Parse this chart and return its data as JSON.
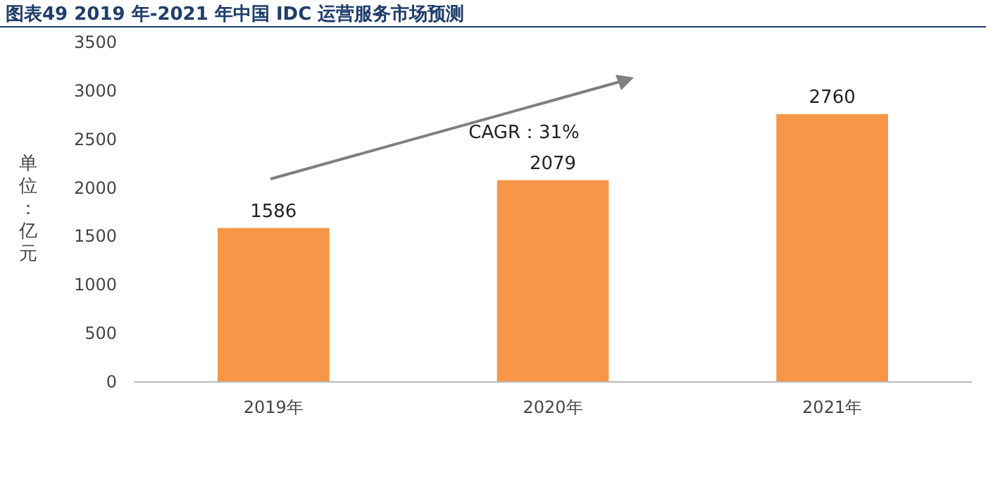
{
  "chart_data": {
    "type": "bar",
    "title": "图表49    2019 年-2021 年中国 IDC 运营服务市场预测",
    "ylabel": "单位：亿元",
    "categories": [
      "2019年",
      "2020年",
      "2021年"
    ],
    "values": [
      1586,
      2079,
      2760
    ],
    "color": "#f79646",
    "ylim": [
      0,
      3500
    ],
    "yticks": [
      0,
      500,
      1000,
      1500,
      2000,
      2500,
      3000,
      3500
    ],
    "grid": false,
    "data_labels": true,
    "annotations": [
      "CAGR：31%"
    ]
  }
}
